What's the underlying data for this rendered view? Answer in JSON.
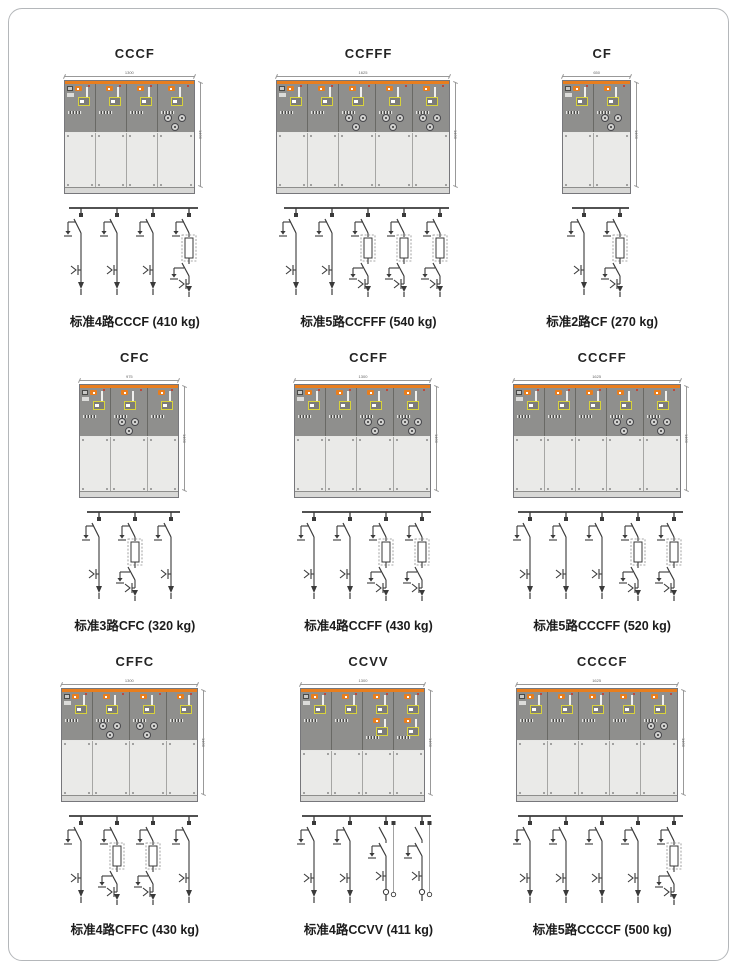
{
  "page": {
    "bg": "#ffffff",
    "frame_color": "#b4b7ba"
  },
  "colors": {
    "orange_strip": "#e87e1e",
    "cabinet_dark": "#8f8f8d",
    "cabinet_light": "#e8e8e6",
    "mimic_yellow": "#d8d23c",
    "status_red": "#cc3322",
    "diagram_line": "#3a3a3a",
    "dimension_line": "#999999"
  },
  "units": [
    {
      "model": "CCCF",
      "panels": [
        "C",
        "C",
        "C",
        "F"
      ],
      "caption": "标准4路CCCF (410 kg)",
      "width_label": "1300",
      "height_label": "1400"
    },
    {
      "model": "CCFFF",
      "panels": [
        "C",
        "C",
        "F",
        "F",
        "F"
      ],
      "caption": "标准5路CCFFF (540 kg)",
      "width_label": "1625",
      "height_label": "1400"
    },
    {
      "model": "CF",
      "panels": [
        "C",
        "F"
      ],
      "caption": "标准2路CF (270 kg)",
      "width_label": "650",
      "height_label": "1400"
    },
    {
      "model": "CFC",
      "panels": [
        "C",
        "F",
        "C"
      ],
      "caption": "标准3路CFC (320 kg)",
      "width_label": "975",
      "height_label": "1400"
    },
    {
      "model": "CCFF",
      "panels": [
        "C",
        "C",
        "F",
        "F"
      ],
      "caption": "标准4路CCFF (430 kg)",
      "width_label": "1300",
      "height_label": "1400"
    },
    {
      "model": "CCCFF",
      "panels": [
        "C",
        "C",
        "C",
        "F",
        "F"
      ],
      "caption": "标准5路CCCFF (520 kg)",
      "width_label": "1625",
      "height_label": "1400"
    },
    {
      "model": "CFFC",
      "panels": [
        "C",
        "F",
        "F",
        "C"
      ],
      "caption": "标准4路CFFC (430 kg)",
      "width_label": "1300",
      "height_label": "1400"
    },
    {
      "model": "CCVV",
      "panels": [
        "C",
        "C",
        "V",
        "V"
      ],
      "caption": "标准4路CCVV (411 kg)",
      "width_label": "1300",
      "height_label": "1400"
    },
    {
      "model": "CCCCF",
      "panels": [
        "C",
        "C",
        "C",
        "C",
        "F"
      ],
      "caption": "标准5路CCCCF (500 kg)",
      "width_label": "1625",
      "height_label": "1400"
    }
  ]
}
